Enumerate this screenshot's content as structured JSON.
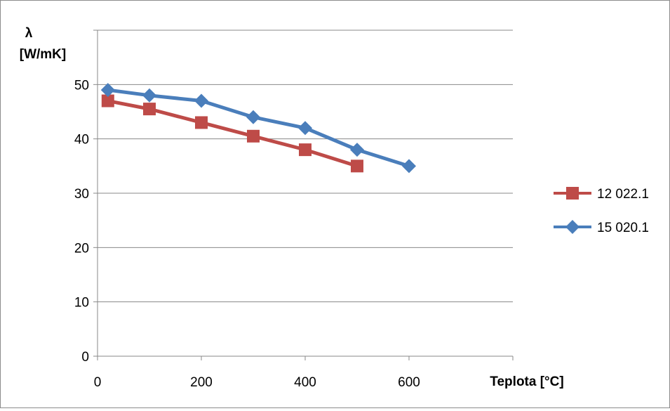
{
  "chart_data": {
    "type": "line",
    "title": "",
    "ylabel_symbol": "λ",
    "ylabel_unit": "[W/mK]",
    "xlabel": "Teplota [°C]",
    "xlim": [
      0,
      800
    ],
    "ylim": [
      0,
      60
    ],
    "x_ticks": [
      0,
      200,
      400,
      600
    ],
    "y_ticks": [
      0,
      10,
      20,
      30,
      40,
      50
    ],
    "grid": "horizontal",
    "legend_position": "right",
    "series": [
      {
        "name": "12 022.1",
        "color": "#be4b48",
        "marker": "square",
        "x": [
          20,
          100,
          200,
          300,
          400,
          500
        ],
        "y": [
          47,
          45.5,
          43,
          40.5,
          38,
          35
        ]
      },
      {
        "name": "15 020.1",
        "color": "#4a7ebb",
        "marker": "diamond",
        "x": [
          20,
          100,
          200,
          300,
          400,
          500,
          600
        ],
        "y": [
          49,
          48,
          47,
          44,
          42,
          38,
          35
        ]
      }
    ]
  }
}
